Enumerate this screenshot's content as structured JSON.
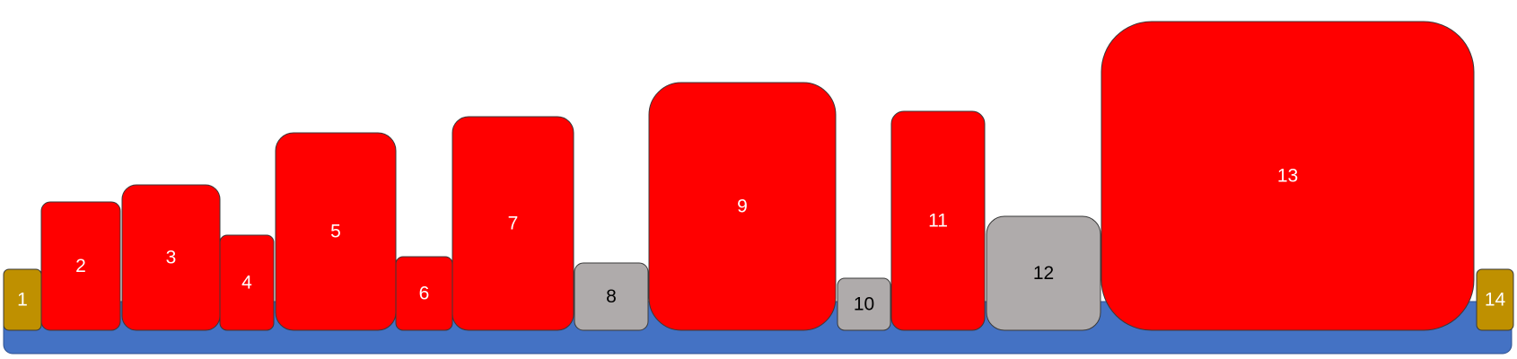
{
  "colors": {
    "base": "#4472c4",
    "red": "#ff0000",
    "gray": "#afabab",
    "gold": "#bf9000",
    "label_on_red": "#ffffff",
    "label_on_gray": "#000000",
    "label_on_gold": "#ffffff"
  },
  "blocks": [
    {
      "label": "1",
      "kind": "gold"
    },
    {
      "label": "2",
      "kind": "red"
    },
    {
      "label": "3",
      "kind": "red"
    },
    {
      "label": "4",
      "kind": "red"
    },
    {
      "label": "5",
      "kind": "red"
    },
    {
      "label": "6",
      "kind": "red"
    },
    {
      "label": "7",
      "kind": "red"
    },
    {
      "label": "8",
      "kind": "gray"
    },
    {
      "label": "9",
      "kind": "red"
    },
    {
      "label": "10",
      "kind": "gray"
    },
    {
      "label": "11",
      "kind": "red"
    },
    {
      "label": "12",
      "kind": "gray"
    },
    {
      "label": "13",
      "kind": "red"
    },
    {
      "label": "14",
      "kind": "gold"
    }
  ]
}
